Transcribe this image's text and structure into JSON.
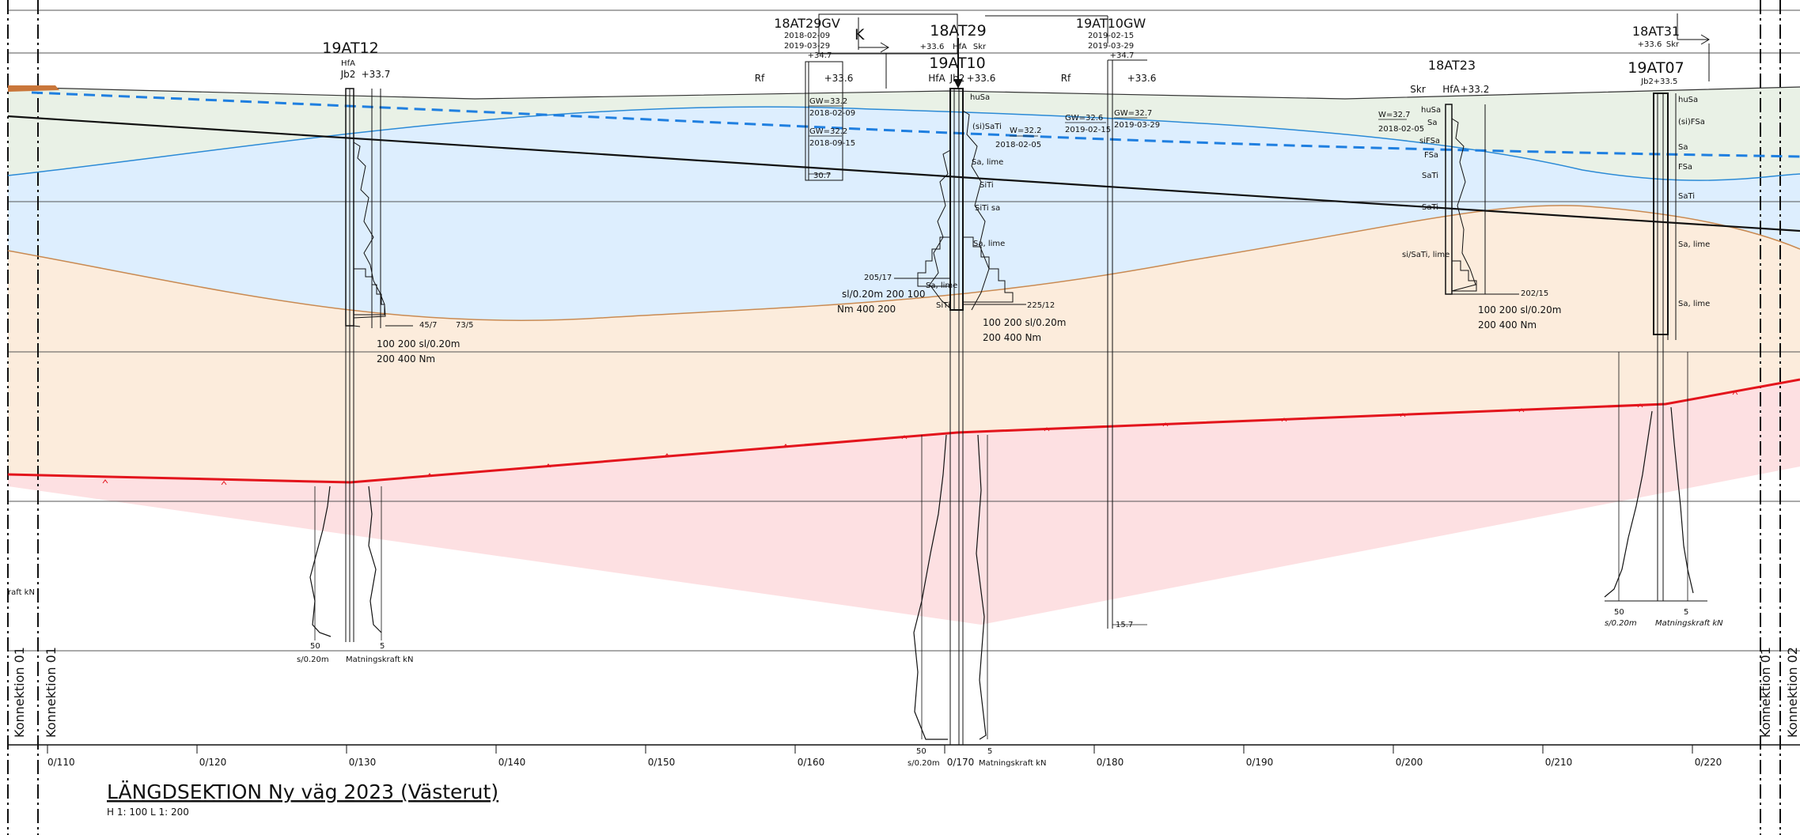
{
  "title": "LÄNGDSEKTION Ny väg 2023 (Västerut)",
  "scale_note": "H 1: 100  L 1: 200",
  "connections": {
    "left_outer": "Konnektion 01",
    "left_inner": "Konnektion 01",
    "right_inner": "Konnektion 01",
    "right_outer": "Konnektion 02"
  },
  "left_edge_label": "raft kN",
  "chainage_ticks": [
    "0/110",
    "0/120",
    "0/130",
    "0/140",
    "0/150",
    "0/160",
    "0/170",
    "0/180",
    "0/190",
    "0/200",
    "0/210",
    "0/220"
  ],
  "boreholes": {
    "b19AT12": {
      "name": "19AT12",
      "method": "HfA",
      "ref": "Jb2",
      "elev": "+33.7",
      "scale_a": "100   200  sl/0.20m",
      "scale_b": "200   400  Nm",
      "bottom_a": "50",
      "bottom_b": "5",
      "bottom_unit_a": "s/0.20m",
      "bottom_unit_b": "Matningskraft kN",
      "val_a": "45/7",
      "val_b": "73/5"
    },
    "b18AT29GV": {
      "name": "18AT29GV",
      "date1": "2018-02-09",
      "date2": "2019-03-29",
      "elev": "+34.7",
      "rf": "Rf",
      "elev2": "+33.6",
      "gw1": "GW=33.2",
      "gw1_date": "2018-02-09",
      "gw2": "GW=32.2",
      "gw2_date": "2018-09-15",
      "bottom": "30.7"
    },
    "b18AT29": {
      "name": "18AT29",
      "elev": "+33.6",
      "method": "HfA",
      "skr": "Skr"
    },
    "b19AT10": {
      "name": "19AT10",
      "method": "HfA",
      "ref": "Jb2",
      "elev": "+33.6",
      "w": "W=32.2",
      "w_date": "2018-02-05",
      "val_left": "205/17",
      "scale_a": "sl/0.20m  200    100",
      "scale_b": "Nm  400    200",
      "val_right": "225/12",
      "scale_c": "100   200  sl/0.20m",
      "scale_d": "200   400  Nm",
      "bottom_a": "50",
      "bottom_b": "5",
      "bottom_unit_a": "s/0.20m",
      "bottom_unit_b": "Matningskraft kN",
      "soils": [
        "huSa",
        "(si)SaTi",
        "Sa, lime",
        "SiTi",
        "SiTi sa",
        "Sa, lime",
        "Sa, lime",
        "SiTi"
      ]
    },
    "b19AT10GW": {
      "name": "19AT10GW",
      "date1": "2019-02-15",
      "date2": "2019-03-29",
      "elev": "+34.7",
      "rf": "Rf",
      "elev2": "+33.6",
      "gw1": "GW=32.6",
      "gw1_date": "2019-02-15",
      "gw2": "GW=32.7",
      "gw2_date": "2019-03-29",
      "bottom": "15.7"
    },
    "b18AT23": {
      "name": "18AT23",
      "skr": "Skr",
      "method": "HfA",
      "elev": "+33.2",
      "w": "W=32.7",
      "w_date": "2018-02-05",
      "val": "202/15",
      "scale_a": "100   200  sl/0.20m",
      "scale_b": "200   400  Nm",
      "soils": [
        "huSa",
        "Sa",
        "siFSa",
        "FSa",
        "SaTi",
        "SaTi",
        "si/SaTi, lime"
      ]
    },
    "b18AT31": {
      "name": "18AT31",
      "elev": "+33.6",
      "skr": "Skr"
    },
    "b19AT07": {
      "name": "19AT07",
      "ref": "Jb2",
      "elev": "+33.5",
      "bottom_a": "50",
      "bottom_b": "5",
      "bottom_unit_a": "s/0.20m",
      "bottom_unit_b": "Matningskraft kN",
      "soils": [
        "huSa",
        "(si)FSa",
        "Sa",
        "FSa",
        "SaTi",
        "Sa, lime",
        "Sa, lime"
      ]
    }
  },
  "colors": {
    "green_layer": "#e9f1e6",
    "blue_layer": "#ddeefe",
    "orange_layer": "#fcecdc",
    "pink_layer": "#fde0e2",
    "rock_line": "#e3141c",
    "groundwater": "#1f7fe0",
    "layer_blue_line": "#2b8ad6",
    "layer_orange_line": "#c98a52",
    "road_line": "#111111"
  }
}
